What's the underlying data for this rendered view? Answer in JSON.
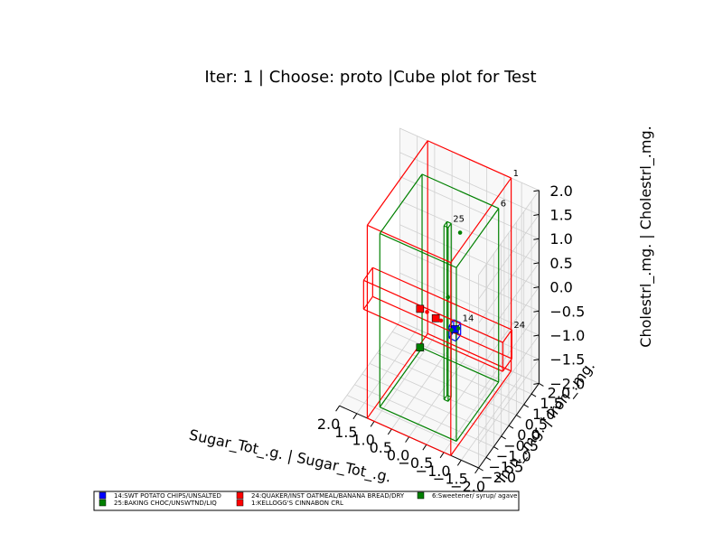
{
  "chart_data": {
    "type": "3d-box",
    "title": "Iter: 1 | Choose: proto |Cube plot for Test",
    "xlabel": "Sugar_Tot_.g. | Sugar_Tot_.g.",
    "ylabel": "Iron_.mg. | Iron_.mg.",
    "zlabel": "Cholestrl_.mg. | Cholestrl_.mg.",
    "xlim": [
      -2.0,
      2.0
    ],
    "ylim": [
      -2.0,
      2.0
    ],
    "zlim": [
      -2.0,
      2.0
    ],
    "ticks": [
      -2.0,
      -1.5,
      -1.0,
      -0.5,
      0.0,
      0.5,
      1.0,
      1.5,
      2.0
    ],
    "tick_labels": [
      "−2.0",
      "−1.5",
      "−1.0",
      "−0.5",
      "0.0",
      "0.5",
      "1.0",
      "1.5",
      "2.0"
    ],
    "grid": true,
    "legend_position": "bottom",
    "colors": {
      "blue": "#0000ff",
      "green": "#008000",
      "red": "#ff0000"
    },
    "boxes": [
      {
        "id": "14",
        "color": "blue",
        "min": [
          -0.55,
          -0.15,
          -0.65
        ],
        "max": [
          -0.35,
          0.15,
          -0.4
        ]
      },
      {
        "id": "25",
        "color": "green",
        "min": [
          -0.3,
          -0.1,
          -2.0
        ],
        "max": [
          -0.18,
          0.1,
          1.6
        ]
      },
      {
        "id": "24",
        "color": "red",
        "min": [
          -2.0,
          -0.4,
          -0.7
        ],
        "max": [
          2.0,
          0.2,
          -0.1
        ]
      },
      {
        "id": "1",
        "color": "red",
        "min": [
          -1.2,
          -2.0,
          -2.0
        ],
        "max": [
          1.2,
          2.0,
          2.0
        ]
      },
      {
        "id": "6",
        "color": "green",
        "min": [
          -1.1,
          -1.4,
          -2.0
        ],
        "max": [
          1.1,
          1.4,
          1.6
        ]
      }
    ],
    "points": [
      {
        "color": "blue",
        "marker": "square",
        "x": -0.45,
        "y": 0.0,
        "z": -0.5
      },
      {
        "color": "green",
        "marker": "dot",
        "x": -0.25,
        "y": 0.0,
        "z": 0.1
      },
      {
        "color": "green",
        "marker": "dot",
        "x": -0.55,
        "y": 0.0,
        "z": -0.45
      },
      {
        "color": "green",
        "marker": "dot",
        "x": -0.35,
        "y": 0.0,
        "z": -0.55
      },
      {
        "color": "red",
        "marker": "square",
        "x": 0.1,
        "y": 0.0,
        "z": -0.45
      },
      {
        "color": "red",
        "marker": "square",
        "x": 0.55,
        "y": 0.0,
        "z": -0.4
      },
      {
        "color": "red",
        "marker": "dot",
        "x": -0.05,
        "y": 0.0,
        "z": -0.45
      },
      {
        "color": "red",
        "marker": "dot",
        "x": 0.35,
        "y": 0.0,
        "z": -0.4
      },
      {
        "color": "green",
        "marker": "square",
        "x": 0.55,
        "y": 0.0,
        "z": -1.2
      },
      {
        "color": "green",
        "marker": "dot",
        "x": -0.6,
        "y": 0.0,
        "z": 1.55
      }
    ],
    "legend": [
      {
        "label": "14:SWT POTATO CHIPS/UNSALTED",
        "color": "blue"
      },
      {
        "label": "25:BAKING CHOC/UNSWTND/LIQ",
        "color": "green"
      },
      {
        "label": "24:QUAKER/INST OATMEAL/BANANA BREAD/DRY",
        "color": "red"
      },
      {
        "label": "1:KELLOGG'S CINNABON CRL",
        "color": "red"
      },
      {
        "label": "6:Sweetener/ syrup/ agave",
        "color": "green"
      }
    ]
  }
}
